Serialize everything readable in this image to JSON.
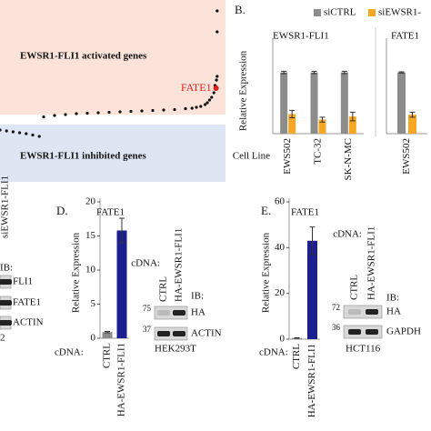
{
  "panel_labels": [
    "B.",
    "D.",
    "E."
  ],
  "chart_data": [
    {
      "type": "scatter",
      "regions": [
        {
          "label": "EWSR1-FLI1 activated genes",
          "color": "#fbe3da"
        },
        {
          "label": "EWSR1-FLI1 inhibited genes",
          "color": "#dfe6f3"
        }
      ],
      "x": [
        0,
        3,
        6,
        9,
        12,
        15,
        18,
        20,
        25,
        30,
        35,
        40,
        45,
        50,
        55,
        60,
        65,
        70,
        75,
        80,
        85,
        88,
        90,
        92,
        94,
        95,
        96,
        97,
        98,
        98.5,
        99.2,
        99.5,
        99.5,
        99.5
      ],
      "values": [
        -1.3,
        -1.4,
        -1.5,
        -1.6,
        -1.7,
        -1.85,
        -2.0,
        0.15,
        0.3,
        0.4,
        0.5,
        0.55,
        0.6,
        0.65,
        0.7,
        0.75,
        0.8,
        0.85,
        0.9,
        0.95,
        1.05,
        1.1,
        1.2,
        1.3,
        1.5,
        1.7,
        2.0,
        2.3,
        2.8,
        3.6,
        4.2,
        4.6,
        9.5,
        11.8
      ],
      "color": "#111111",
      "highlight": {
        "label": "FATE1",
        "x": 99,
        "value": 3.3,
        "color": "#e0201b"
      },
      "xlim": [
        0,
        100
      ],
      "ylim": [
        -7,
        13
      ]
    },
    {
      "type": "bar",
      "title": "EWSR1-FLI1",
      "ylabel": "Relative Expression",
      "xlabel": "Cell Line",
      "categories": [
        "EWS502",
        "TC-32",
        "SK-N-MC"
      ],
      "series": [
        {
          "name": "siCTRL",
          "color": "#8c8c8c",
          "values": [
            1.0,
            1.0,
            1.0
          ],
          "errors": [
            0.02,
            0.02,
            0.02
          ]
        },
        {
          "name": "siEWSR1-",
          "color": "#f5a623",
          "values": [
            0.32,
            0.23,
            0.28
          ],
          "errors": [
            0.06,
            0.04,
            0.07
          ]
        }
      ],
      "ylim": [
        0,
        1.5
      ]
    },
    {
      "type": "bar",
      "title": "FATE1",
      "categories": [
        "EWS502"
      ],
      "series": [
        {
          "color": "#8c8c8c",
          "values": [
            1.0
          ],
          "errors": [
            0.01
          ]
        },
        {
          "color": "#f5a623",
          "values": [
            0.31
          ],
          "errors": [
            0.04
          ]
        }
      ],
      "ylim": [
        0,
        1.5
      ]
    },
    {
      "type": "bar",
      "title": "FATE1",
      "ylabel": "Relative Expression",
      "xlabel": "cDNA:",
      "categories": [
        "CTRL",
        "HA-EWSR1-FLI1"
      ],
      "series": [
        {
          "colors": [
            "#8c8c8c",
            "#1c1f8f"
          ],
          "values": [
            0.9,
            15.8
          ],
          "errors": [
            0.1,
            1.8
          ]
        }
      ],
      "ylim": [
        0,
        20
      ],
      "yticks": [
        0,
        5,
        10,
        15,
        20
      ]
    },
    {
      "type": "bar",
      "title": "FATE1",
      "ylabel": "Relative Expression",
      "xlabel": "cDNA:",
      "categories": [
        "CTRL",
        "HA-EWSR1-FLI1"
      ],
      "series": [
        {
          "colors": [
            "#8c8c8c",
            "#1c1f8f"
          ],
          "values": [
            0.5,
            43
          ],
          "errors": [
            0.1,
            6
          ]
        }
      ],
      "ylim": [
        0,
        60
      ],
      "yticks": [
        0,
        20,
        40,
        60
      ]
    }
  ],
  "blots": [
    {
      "lanes": [
        "siEWSR1-FLI1"
      ],
      "ib": "IB:",
      "rows": [
        {
          "label": "FLI1"
        },
        {
          "label": "FATE1"
        },
        {
          "label": "ACTIN"
        }
      ],
      "footer": "2"
    },
    {
      "header": "cDNA:",
      "lanes": [
        "CTRL",
        "HA-EWSR1-FLI1"
      ],
      "ib": "IB:",
      "rows": [
        {
          "marker": "75",
          "label": "HA"
        },
        {
          "marker": "37",
          "label": "ACTIN"
        }
      ],
      "cell_line": "HEK293T"
    },
    {
      "header": "cDNA:",
      "lanes": [
        "CTRL",
        "HA-EWSR1-FLI1"
      ],
      "ib": "IB:",
      "rows": [
        {
          "marker": "72",
          "label": "HA"
        },
        {
          "marker": "36",
          "label": "GAPDH"
        }
      ],
      "cell_line": "HCT116"
    }
  ]
}
